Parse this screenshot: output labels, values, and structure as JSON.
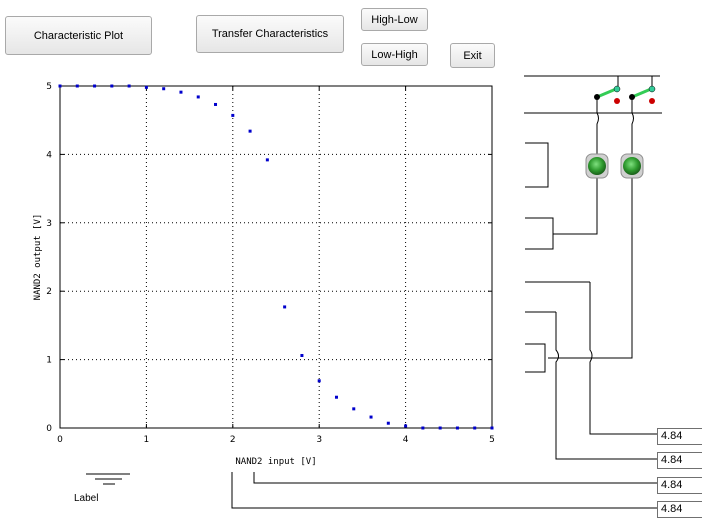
{
  "buttons": {
    "characteristic_plot": "Characteristic Plot",
    "transfer_characteristics": "Transfer Characteristics",
    "high_low": "High-Low",
    "low_high": "Low-High",
    "exit": "Exit"
  },
  "chart_data": {
    "type": "scatter",
    "xlabel": "NAND2 input [V]",
    "ylabel": "NAND2 output [V]",
    "xlim": [
      0,
      5
    ],
    "ylim": [
      0,
      5
    ],
    "xticks": [
      "0",
      "1",
      "2",
      "3",
      "4",
      "5"
    ],
    "yticks": [
      "0",
      "1",
      "2",
      "3",
      "4",
      "5"
    ],
    "grid": true,
    "marker_color": "#0000cc",
    "x": [
      0,
      0.2,
      0.4,
      0.6,
      0.8,
      1.0,
      1.2,
      1.4,
      1.6,
      1.8,
      2.0,
      2.2,
      2.4,
      2.6,
      2.8,
      3.0,
      3.2,
      3.4,
      3.6,
      3.8,
      4.0,
      4.2,
      4.4,
      4.6,
      4.8,
      5.0
    ],
    "y": [
      5.0,
      5.0,
      5.0,
      5.0,
      5.0,
      4.98,
      4.96,
      4.91,
      4.84,
      4.73,
      4.57,
      4.34,
      3.92,
      1.77,
      1.06,
      0.69,
      0.45,
      0.28,
      0.16,
      0.07,
      0.03,
      0.0,
      0.0,
      0.0,
      0.0,
      0.0
    ]
  },
  "schematic": {
    "switch_on_color": "#33cc55",
    "switch_off_color": "#cc0000",
    "led_color": "#2e9a2e"
  },
  "outputs": [
    "4.84",
    "4.84",
    "4.84",
    "4.84"
  ],
  "ground_label": "Label"
}
